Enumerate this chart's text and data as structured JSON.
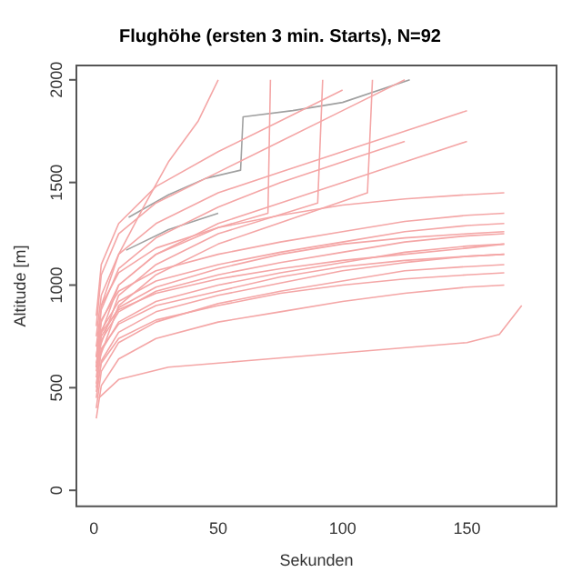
{
  "chart_data": {
    "type": "line",
    "title": "Flughöhe (ersten 3 min. Starts), N=92",
    "xlabel": "Sekunden",
    "ylabel": "Altitude [m]",
    "xlim": [
      -7,
      186
    ],
    "ylim": [
      -78,
      2070
    ],
    "xticks": [
      0,
      50,
      100,
      150
    ],
    "yticks": [
      0,
      500,
      1000,
      1500,
      2000
    ],
    "grid": false,
    "legend": false,
    "marker": "none",
    "line_style": "solid",
    "x": [
      1,
      3,
      10,
      25,
      50,
      75,
      100,
      125,
      150,
      165
    ],
    "series": [
      {
        "color": "#f4a6a6",
        "values": [
          350,
          510,
          640,
          740,
          820,
          870,
          920,
          960,
          990,
          1000
        ]
      },
      {
        "color": "#f4a6a6",
        "values": [
          400,
          580,
          720,
          820,
          910,
          970,
          1020,
          1070,
          1090,
          1100
        ]
      },
      {
        "color": "#f4a6a6",
        "values": [
          450,
          630,
          770,
          870,
          950,
          1010,
          1070,
          1110,
          1140,
          1150
        ]
      },
      {
        "color": "#f4a6a6",
        "values": [
          500,
          680,
          820,
          920,
          1000,
          1060,
          1110,
          1160,
          1190,
          1200
        ]
      },
      {
        "color": "#f4a6a6",
        "values": [
          550,
          730,
          870,
          970,
          1050,
          1110,
          1160,
          1210,
          1240,
          1250
        ]
      },
      {
        "color": "#f4a6a6",
        "values": [
          600,
          780,
          920,
          1020,
          1100,
          1160,
          1210,
          1260,
          1290,
          1300
        ]
      },
      {
        "color": "#f4a6a6",
        "values": [
          650,
          830,
          970,
          1070,
          1150,
          1210,
          1260,
          1310,
          1340,
          1350
        ]
      },
      {
        "color": "#f4a6a6",
        "values": [
          480,
          620,
          740,
          830,
          900,
          960,
          1000,
          1030,
          1050,
          1060
        ]
      },
      {
        "color": "#f4a6a6",
        "values": [
          520,
          690,
          810,
          900,
          970,
          1040,
          1090,
          1120,
          1140,
          1150
        ]
      },
      {
        "color": "#f4a6a6",
        "values": [
          580,
          750,
          890,
          990,
          1080,
          1150,
          1200,
          1230,
          1250,
          1260
        ]
      },
      {
        "color": "#f4a6a6",
        "values": [
          620,
          770,
          880,
          960,
          1030,
          1080,
          1120,
          1150,
          1180,
          1200
        ]
      },
      {
        "color": "#f4a6a6",
        "values": [
          700,
          900,
          1060,
          1180,
          1280,
          1340,
          1390,
          1420,
          1440,
          1450
        ]
      },
      {
        "color": "#f4a6a6",
        "values": [
          750,
          950,
          1150,
          1300,
          1450,
          1550,
          1650,
          1750,
          1850,
          null
        ]
      },
      {
        "color": "#f4a6a6",
        "values": [
          800,
          1050,
          1250,
          1400,
          1550,
          1700,
          1850,
          2000,
          null,
          null
        ]
      },
      {
        "color": "#f4a6a6",
        "values": [
          850,
          1100,
          1300,
          1480,
          1650,
          1800,
          1950,
          null,
          null,
          null
        ]
      },
      {
        "color": "#f4a6a6",
        "values": [
          600,
          820,
          1000,
          1150,
          1300,
          1400,
          1500,
          1600,
          1700,
          null
        ]
      },
      {
        "color": "#f4a6a6",
        "values": [
          650,
          880,
          1080,
          1230,
          1380,
          1500,
          1600,
          1700,
          null,
          null
        ]
      },
      {
        "color": "#f4a6a6",
        "x": [
          1,
          10,
          25,
          50,
          70,
          71
        ],
        "values": [
          700,
          1000,
          1150,
          1280,
          1350,
          2000
        ]
      },
      {
        "color": "#f4a6a6",
        "x": [
          1,
          10,
          25,
          50,
          90,
          92
        ],
        "values": [
          650,
          950,
          1100,
          1250,
          1400,
          2000
        ]
      },
      {
        "color": "#f4a6a6",
        "x": [
          1,
          10,
          25,
          50,
          110,
          112
        ],
        "values": [
          600,
          900,
          1050,
          1200,
          1450,
          2000
        ]
      },
      {
        "color": "#f4a6a6",
        "x": [
          3,
          10,
          20,
          30,
          42,
          50
        ],
        "values": [
          900,
          1150,
          1380,
          1600,
          1800,
          2000
        ]
      },
      {
        "color": "#f4a6a6",
        "x": [
          2,
          10,
          30,
          60,
          100,
          150,
          163,
          172
        ],
        "values": [
          450,
          540,
          600,
          630,
          670,
          720,
          760,
          900
        ]
      },
      {
        "color": "#a0a0a0",
        "x": [
          14,
          30,
          45,
          59,
          60,
          80,
          100,
          127
        ],
        "values": [
          1330,
          1440,
          1520,
          1560,
          1820,
          1850,
          1890,
          2000
        ]
      },
      {
        "color": "#a0a0a0",
        "x": [
          13,
          30,
          50
        ],
        "values": [
          1170,
          1270,
          1350
        ]
      }
    ]
  }
}
